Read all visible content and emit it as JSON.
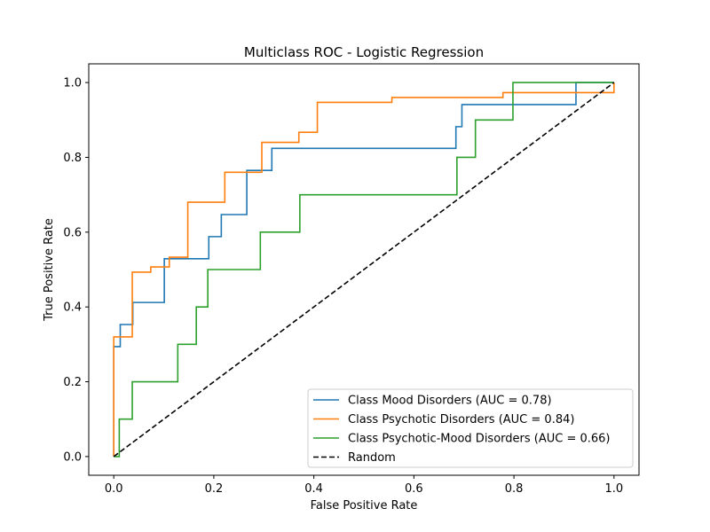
{
  "chart_data": {
    "type": "line",
    "title": "Multiclass ROC - Logistic Regression",
    "xlabel": "False Positive Rate",
    "ylabel": "True Positive Rate",
    "xlim": [
      -0.05,
      1.05
    ],
    "ylim": [
      -0.05,
      1.05
    ],
    "xticks": [
      "0.0",
      "0.2",
      "0.4",
      "0.6",
      "0.8",
      "1.0"
    ],
    "yticks": [
      "0.0",
      "0.2",
      "0.4",
      "0.6",
      "0.8",
      "1.0"
    ],
    "grid": false,
    "legend_position": "lower-right",
    "series": [
      {
        "name": "Class Mood Disorders (AUC = 0.78)",
        "color": "#1f77b4",
        "points": [
          [
            0,
            0
          ],
          [
            0,
            0.294
          ],
          [
            0.013,
            0.294
          ],
          [
            0.013,
            0.353
          ],
          [
            0.038,
            0.353
          ],
          [
            0.038,
            0.412
          ],
          [
            0.101,
            0.412
          ],
          [
            0.101,
            0.529
          ],
          [
            0.19,
            0.529
          ],
          [
            0.19,
            0.588
          ],
          [
            0.215,
            0.588
          ],
          [
            0.215,
            0.647
          ],
          [
            0.266,
            0.647
          ],
          [
            0.266,
            0.765
          ],
          [
            0.316,
            0.765
          ],
          [
            0.316,
            0.824
          ],
          [
            0.684,
            0.824
          ],
          [
            0.684,
            0.882
          ],
          [
            0.696,
            0.882
          ],
          [
            0.696,
            0.941
          ],
          [
            0.924,
            0.941
          ],
          [
            0.924,
            1.0
          ],
          [
            1.0,
            1.0
          ]
        ]
      },
      {
        "name": "Class Psychotic Disorders (AUC = 0.84)",
        "color": "#ff7f0e",
        "points": [
          [
            0,
            0
          ],
          [
            0,
            0.32
          ],
          [
            0.037,
            0.32
          ],
          [
            0.037,
            0.493
          ],
          [
            0.074,
            0.493
          ],
          [
            0.074,
            0.507
          ],
          [
            0.111,
            0.507
          ],
          [
            0.111,
            0.533
          ],
          [
            0.148,
            0.533
          ],
          [
            0.148,
            0.68
          ],
          [
            0.222,
            0.68
          ],
          [
            0.222,
            0.76
          ],
          [
            0.296,
            0.76
          ],
          [
            0.296,
            0.84
          ],
          [
            0.37,
            0.84
          ],
          [
            0.37,
            0.867
          ],
          [
            0.407,
            0.867
          ],
          [
            0.407,
            0.947
          ],
          [
            0.556,
            0.947
          ],
          [
            0.556,
            0.96
          ],
          [
            0.778,
            0.96
          ],
          [
            0.778,
            0.973
          ],
          [
            1.0,
            0.973
          ],
          [
            1.0,
            1.0
          ]
        ]
      },
      {
        "name": "Class Psychotic-Mood Disorders (AUC = 0.66)",
        "color": "#2ca02c",
        "points": [
          [
            0,
            0
          ],
          [
            0.011,
            0
          ],
          [
            0.011,
            0.1
          ],
          [
            0.037,
            0.1
          ],
          [
            0.037,
            0.2
          ],
          [
            0.128,
            0.2
          ],
          [
            0.128,
            0.3
          ],
          [
            0.165,
            0.3
          ],
          [
            0.165,
            0.4
          ],
          [
            0.188,
            0.4
          ],
          [
            0.188,
            0.5
          ],
          [
            0.293,
            0.5
          ],
          [
            0.293,
            0.6
          ],
          [
            0.372,
            0.6
          ],
          [
            0.372,
            0.7
          ],
          [
            0.686,
            0.7
          ],
          [
            0.686,
            0.8
          ],
          [
            0.723,
            0.8
          ],
          [
            0.723,
            0.9
          ],
          [
            0.798,
            0.9
          ],
          [
            0.798,
            1.0
          ],
          [
            1.0,
            1.0
          ]
        ]
      },
      {
        "name": "Random",
        "color": "#000000",
        "dashed": true,
        "points": [
          [
            0,
            0
          ],
          [
            1,
            1
          ]
        ]
      }
    ]
  }
}
